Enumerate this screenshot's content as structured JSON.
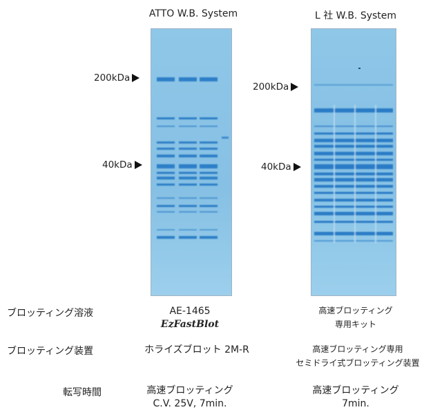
{
  "gels": [
    {
      "title": "ATTO W.B. System",
      "markers": [
        {
          "label": "200kDa"
        },
        {
          "label": "40kDa"
        }
      ]
    },
    {
      "title": "L 社 W.B. System",
      "markers": [
        {
          "label": "200kDa"
        },
        {
          "label": "40kDa"
        }
      ]
    }
  ],
  "table": {
    "rows": [
      {
        "label": "ブロッティング溶液",
        "atto": [
          "AE-1465",
          "EzFastBlot"
        ],
        "other": [
          "高速ブロッティング",
          "専用キット"
        ]
      },
      {
        "label": "ブロッティング装置",
        "atto": [
          "ホライズブロット 2M-R"
        ],
        "other": [
          "高速ブロッティング専用",
          "セミドライ式ブロッティング装置"
        ]
      },
      {
        "label": "転写時間",
        "atto": [
          "高速ブロッティング",
          "C.V. 25V, 7min."
        ],
        "other": [
          "高速ブロッティング",
          "7min."
        ]
      }
    ]
  },
  "colors": {
    "gel_background": "#8ec6e6",
    "band": "#2c7fc9",
    "marker_arrow": "#111111"
  }
}
